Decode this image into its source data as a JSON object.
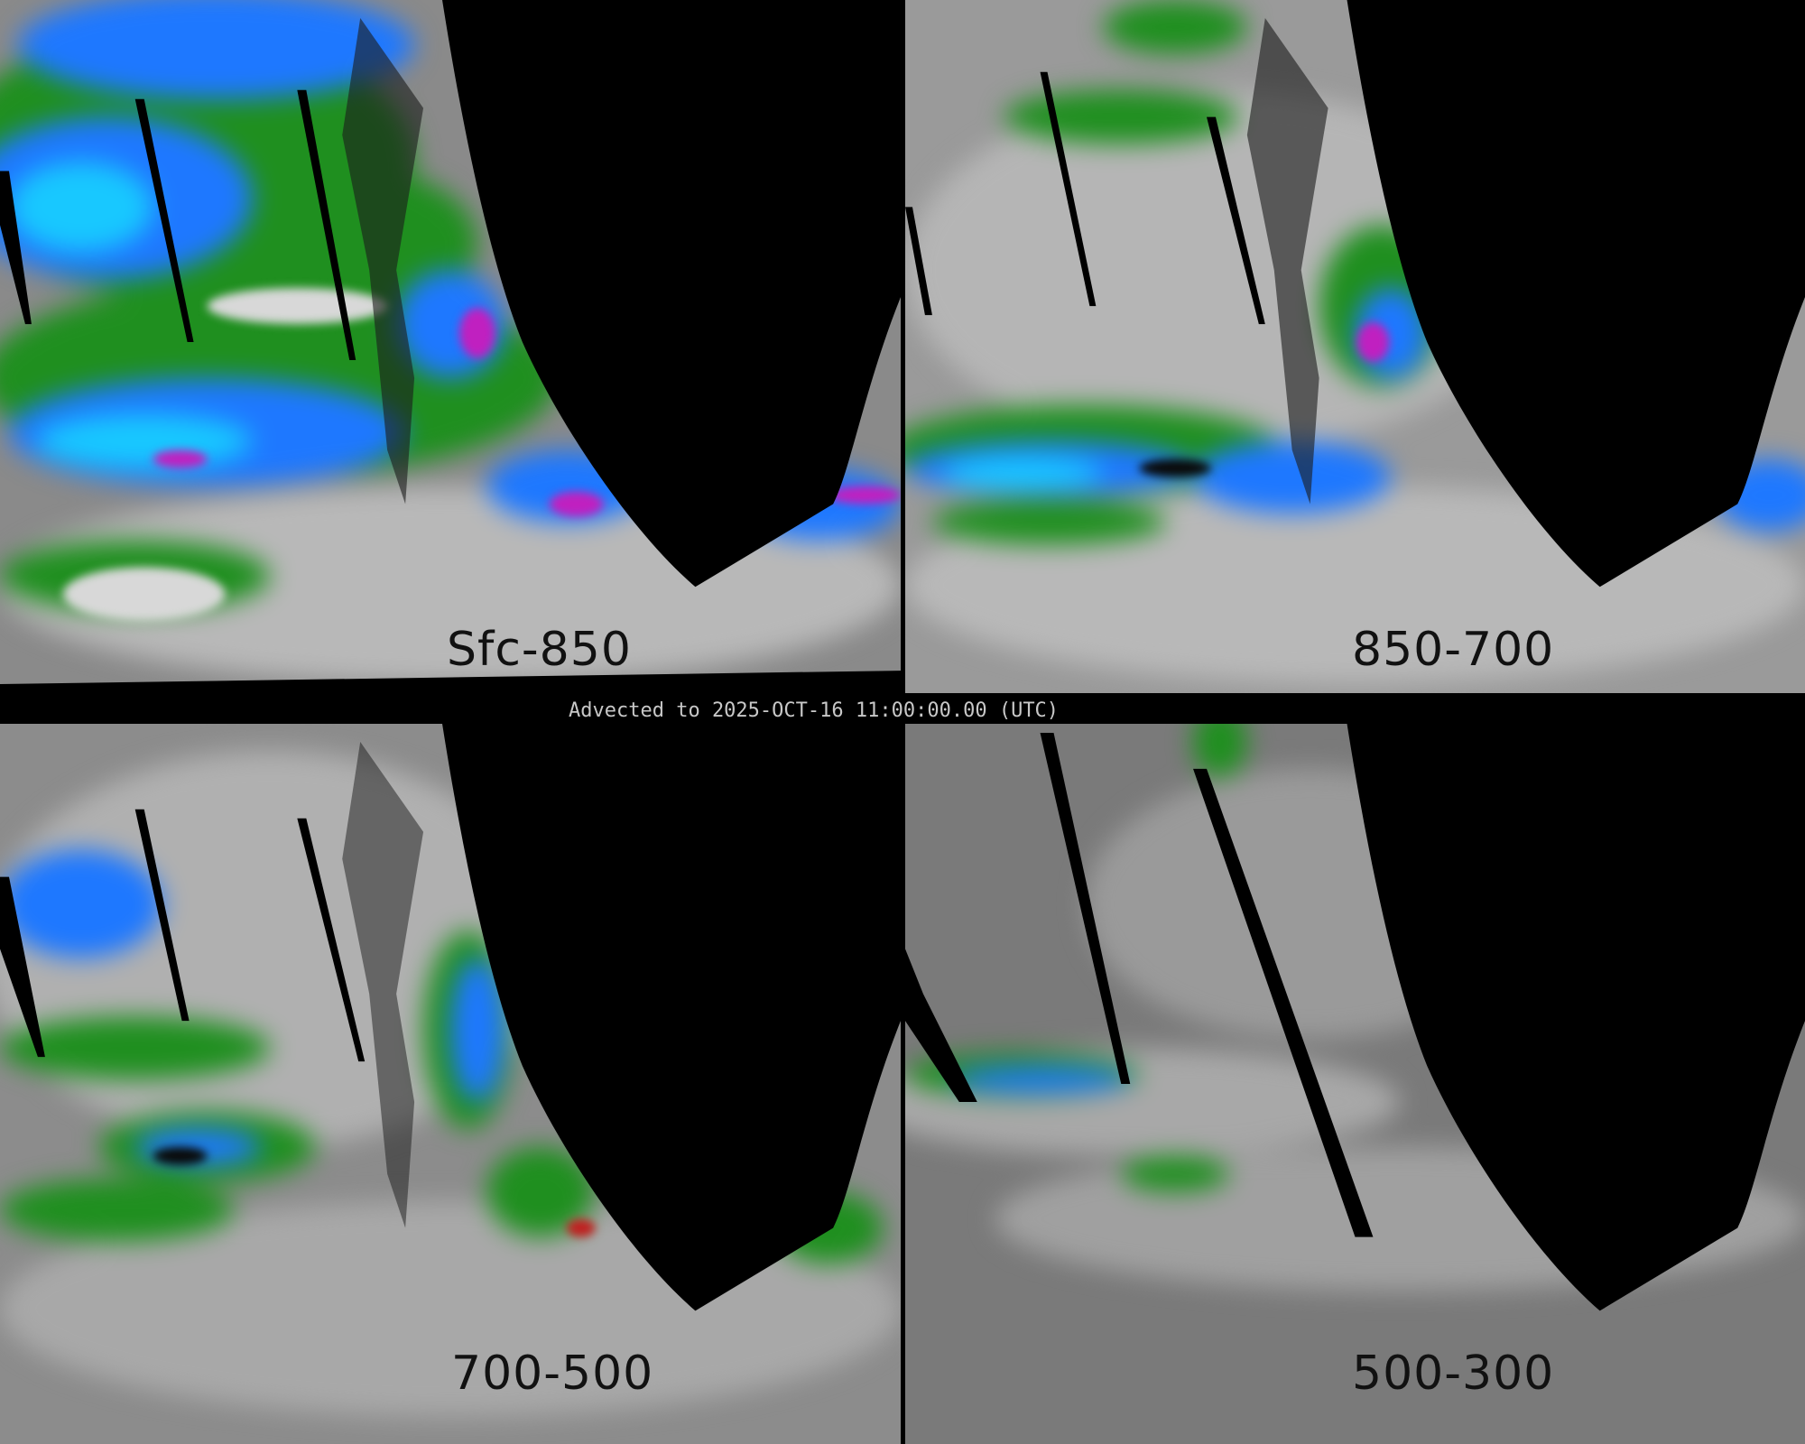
{
  "timestamp_label": "Advected to 2025-OCT-16 11:00:00.00 (UTC)",
  "panels": [
    {
      "label": "Sfc-850"
    },
    {
      "label": "850-700"
    },
    {
      "label": "700-500"
    },
    {
      "label": "500-300"
    }
  ],
  "colors": {
    "background_gray": "#7a7a7a",
    "light_gray": "#d8d8d8",
    "green": "#1f8f1f",
    "blue": "#1e78ff",
    "cyan": "#18c8ff",
    "magenta": "#c020c0",
    "no_data": "#000000"
  }
}
